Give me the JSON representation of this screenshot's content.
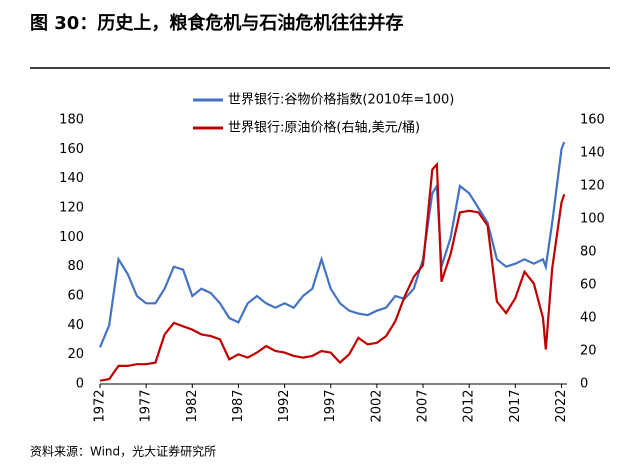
{
  "chart_data": {
    "type": "line",
    "title": "图 30：历史上，粮食危机与石油危机往往并存",
    "source": "资料来源：Wind，光大证券研究所",
    "x": [
      1972,
      1973,
      1974,
      1975,
      1976,
      1977,
      1978,
      1979,
      1980,
      1981,
      1982,
      1983,
      1984,
      1985,
      1986,
      1987,
      1988,
      1989,
      1990,
      1991,
      1992,
      1993,
      1994,
      1995,
      1996,
      1997,
      1998,
      1999,
      2000,
      2001,
      2002,
      2003,
      2004,
      2005,
      2006,
      2007,
      2008,
      2008.5,
      2009,
      2010,
      2011,
      2012,
      2013,
      2014,
      2015,
      2016,
      2017,
      2018,
      2019,
      2020,
      2020.3,
      2021,
      2022,
      2022.3
    ],
    "series": [
      {
        "name": "世界银行:谷物价格指数(2010年=100)",
        "color": "#4472c4",
        "axis": "y",
        "values": [
          25,
          40,
          85,
          75,
          60,
          55,
          55,
          65,
          80,
          78,
          60,
          65,
          62,
          55,
          45,
          42,
          55,
          60,
          55,
          52,
          55,
          52,
          60,
          65,
          85,
          65,
          55,
          50,
          48,
          47,
          50,
          52,
          60,
          58,
          65,
          85,
          130,
          135,
          80,
          100,
          135,
          130,
          120,
          110,
          85,
          80,
          82,
          85,
          82,
          85,
          80,
          110,
          160,
          165
        ]
      },
      {
        "name": "世界银行:原油价格(右轴,美元/桶)",
        "color": "#c00000",
        "axis": "y2",
        "values": [
          2,
          3,
          11,
          11,
          12,
          12,
          13,
          30,
          37,
          35,
          33,
          30,
          29,
          27,
          15,
          18,
          16,
          19,
          23,
          20,
          19,
          17,
          16,
          17,
          20,
          19,
          13,
          18,
          28,
          24,
          25,
          29,
          38,
          53,
          65,
          72,
          130,
          133,
          62,
          79,
          104,
          105,
          104,
          96,
          50,
          43,
          52,
          68,
          61,
          40,
          21,
          70,
          110,
          115
        ]
      }
    ],
    "xlim": [
      1972,
      2022.6
    ],
    "xticks": [
      1972,
      1977,
      1982,
      1987,
      1992,
      1997,
      2002,
      2007,
      2012,
      2017,
      2022
    ],
    "ylim": [
      0,
      180
    ],
    "yticks": [
      0,
      20,
      40,
      60,
      80,
      100,
      120,
      140,
      160,
      180
    ],
    "y2lim": [
      0,
      160
    ],
    "y2ticks": [
      0,
      20,
      40,
      60,
      80,
      100,
      120,
      140,
      160
    ]
  }
}
